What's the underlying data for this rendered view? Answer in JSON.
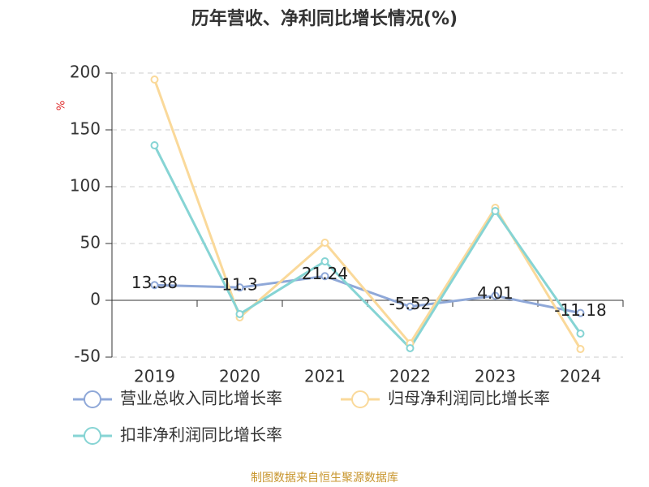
{
  "chart_data": {
    "type": "line",
    "title": "历年营收、净利同比增长情况(%)",
    "y_label": "%",
    "categories": [
      "2019",
      "2020",
      "2021",
      "2022",
      "2023",
      "2024"
    ],
    "series": [
      {
        "name": "营业总收入同比增长率",
        "color": "#8fa8d8",
        "values": [
          13.38,
          11.3,
          21.24,
          -5.52,
          4.01,
          -11.18
        ],
        "show_labels": true
      },
      {
        "name": "归母净利润同比增长率",
        "color": "#fad99a",
        "values": [
          194.3,
          -15,
          50.7,
          -37.9,
          81.4,
          -42.9
        ]
      },
      {
        "name": "扣非净利润同比增长率",
        "color": "#86d4d4",
        "values": [
          136.4,
          -12.1,
          34.3,
          -42.1,
          78.6,
          -29.3
        ]
      }
    ],
    "ylim": [
      -50,
      200
    ],
    "yticks": [
      -50,
      0,
      50,
      100,
      150,
      200
    ],
    "grid": true,
    "source": "制图数据来自恒生聚源数据库"
  }
}
